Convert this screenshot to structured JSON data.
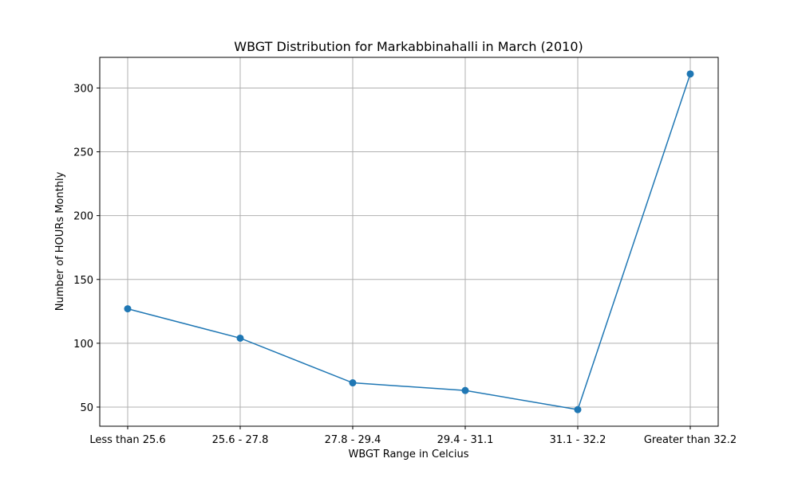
{
  "chart_data": {
    "type": "line",
    "title": "WBGT Distribution for Markabbinahalli in March (2010)",
    "xlabel": "WBGT Range in Celcius",
    "ylabel": "Number of HOURs Monthly",
    "categories": [
      "Less than 25.6",
      "25.6 - 27.8",
      "27.8 - 29.4",
      "29.4 - 31.1",
      "31.1 - 32.2",
      "Greater than 32.2"
    ],
    "series": [
      {
        "values": [
          127,
          104,
          69,
          63,
          48,
          311
        ]
      }
    ],
    "ylim": [
      35,
      324
    ],
    "yticks": [
      50,
      100,
      150,
      200,
      250,
      300
    ],
    "grid": true,
    "line_color": "#1f77b4",
    "marker": "circle"
  }
}
